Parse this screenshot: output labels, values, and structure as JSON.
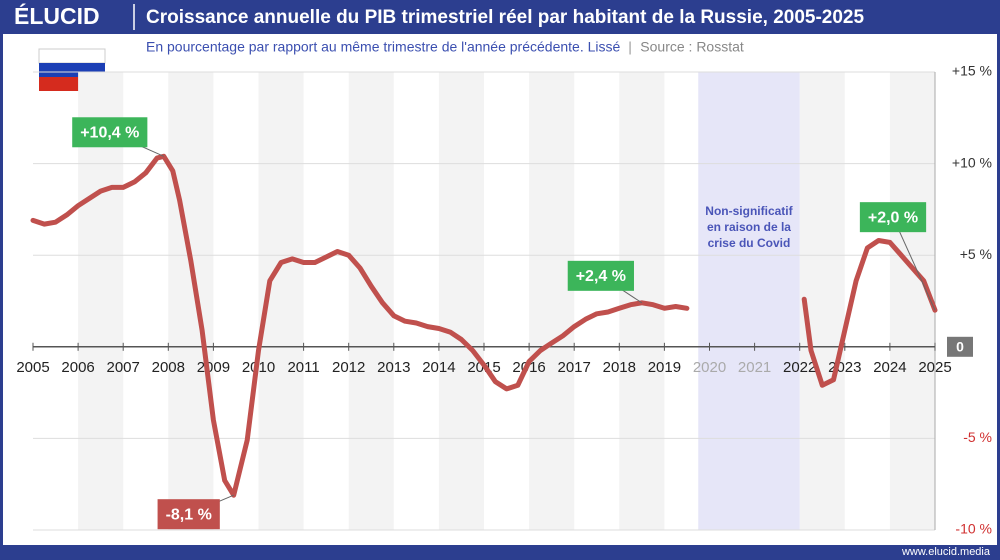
{
  "chart_data": {
    "type": "line",
    "brand": "ÉLUCID",
    "title": "Croissance annuelle du PIB trimestriel réel par habitant de la Russie, 2005-2025",
    "subtitle": "En pourcentage par rapport au même trimestre de l'année précédente. Lissé",
    "source": "Source : Rosstat",
    "website": "www.elucid.media",
    "x": [
      2005,
      2005.25,
      2005.5,
      2005.75,
      2006,
      2006.25,
      2006.5,
      2006.75,
      2007,
      2007.25,
      2007.5,
      2007.75,
      2007.9,
      2008.1,
      2008.25,
      2008.5,
      2008.75,
      2009,
      2009.25,
      2009.45,
      2009.75,
      2010,
      2010.25,
      2010.5,
      2010.75,
      2011,
      2011.25,
      2011.5,
      2011.75,
      2012,
      2012.25,
      2012.5,
      2012.75,
      2013,
      2013.25,
      2013.5,
      2013.75,
      2014,
      2014.25,
      2014.5,
      2014.75,
      2015,
      2015.25,
      2015.5,
      2015.75,
      2016,
      2016.25,
      2016.5,
      2016.75,
      2017,
      2017.25,
      2017.5,
      2017.75,
      2018,
      2018.25,
      2018.5,
      2018.75,
      2019,
      2019.25,
      2019.5,
      2020.5,
      2022.1,
      2022.25,
      2022.5,
      2022.75,
      2023,
      2023.25,
      2023.5,
      2023.75,
      2024,
      2024.25,
      2024.5,
      2024.75,
      2025
    ],
    "series": [
      {
        "color": "#c0504d",
        "values": [
          6.9,
          6.7,
          6.8,
          7.2,
          7.7,
          8.1,
          8.5,
          8.7,
          8.7,
          9.0,
          9.5,
          10.3,
          10.4,
          9.6,
          8.0,
          4.7,
          0.9,
          -4.0,
          -7.3,
          -8.1,
          -5.1,
          -0.2,
          3.6,
          4.6,
          4.8,
          4.6,
          4.6,
          4.9,
          5.2,
          5.0,
          4.3,
          3.3,
          2.4,
          1.7,
          1.4,
          1.3,
          1.1,
          1.0,
          0.8,
          0.4,
          -0.2,
          -1.0,
          -1.9,
          -2.3,
          -2.1,
          -0.8,
          -0.2,
          0.2,
          0.6,
          1.1,
          1.5,
          1.8,
          1.9,
          2.1,
          2.3,
          2.4,
          2.3,
          2.1,
          2.2,
          2.1,
          null,
          2.6,
          -0.2,
          -2.1,
          -1.8,
          0.9,
          3.6,
          5.4,
          5.8,
          5.7,
          5.0,
          4.3,
          3.6,
          2.0
        ]
      }
    ],
    "xlim": [
      2005,
      2025
    ],
    "xticks": [
      2005,
      2006,
      2007,
      2008,
      2009,
      2010,
      2011,
      2012,
      2013,
      2014,
      2015,
      2016,
      2017,
      2018,
      2019,
      2020,
      2021,
      2022,
      2023,
      2024,
      2025
    ],
    "ylim": [
      -10,
      15
    ],
    "yticks": [
      {
        "value": -10,
        "label": "-10 %"
      },
      {
        "value": -5,
        "label": "-5 %"
      },
      0,
      {
        "value": 5,
        "label": "+5 %"
      },
      {
        "value": 10,
        "label": "+10 %"
      },
      {
        "value": 15,
        "label": "+15 %"
      }
    ],
    "grid": true,
    "covid_band": {
      "x": [
        2019.75,
        2022
      ],
      "lines": [
        "Non-significatif",
        "en raison de la",
        "crise du Covid"
      ]
    },
    "annotations": [
      {
        "text": "+10,4 %",
        "x": 2007.9,
        "y": 10.4,
        "color": "#3cb55a"
      },
      {
        "text": "-8,1 %",
        "x": 2009.45,
        "y": -8.1,
        "color": "#c0504d"
      },
      {
        "text": "+2,4 %",
        "x": 2018.5,
        "y": 2.4,
        "color": "#3cb55a"
      },
      {
        "text": "+2,0 %",
        "x": 2025,
        "y": 2.0,
        "color": "#3cb55a"
      }
    ]
  }
}
